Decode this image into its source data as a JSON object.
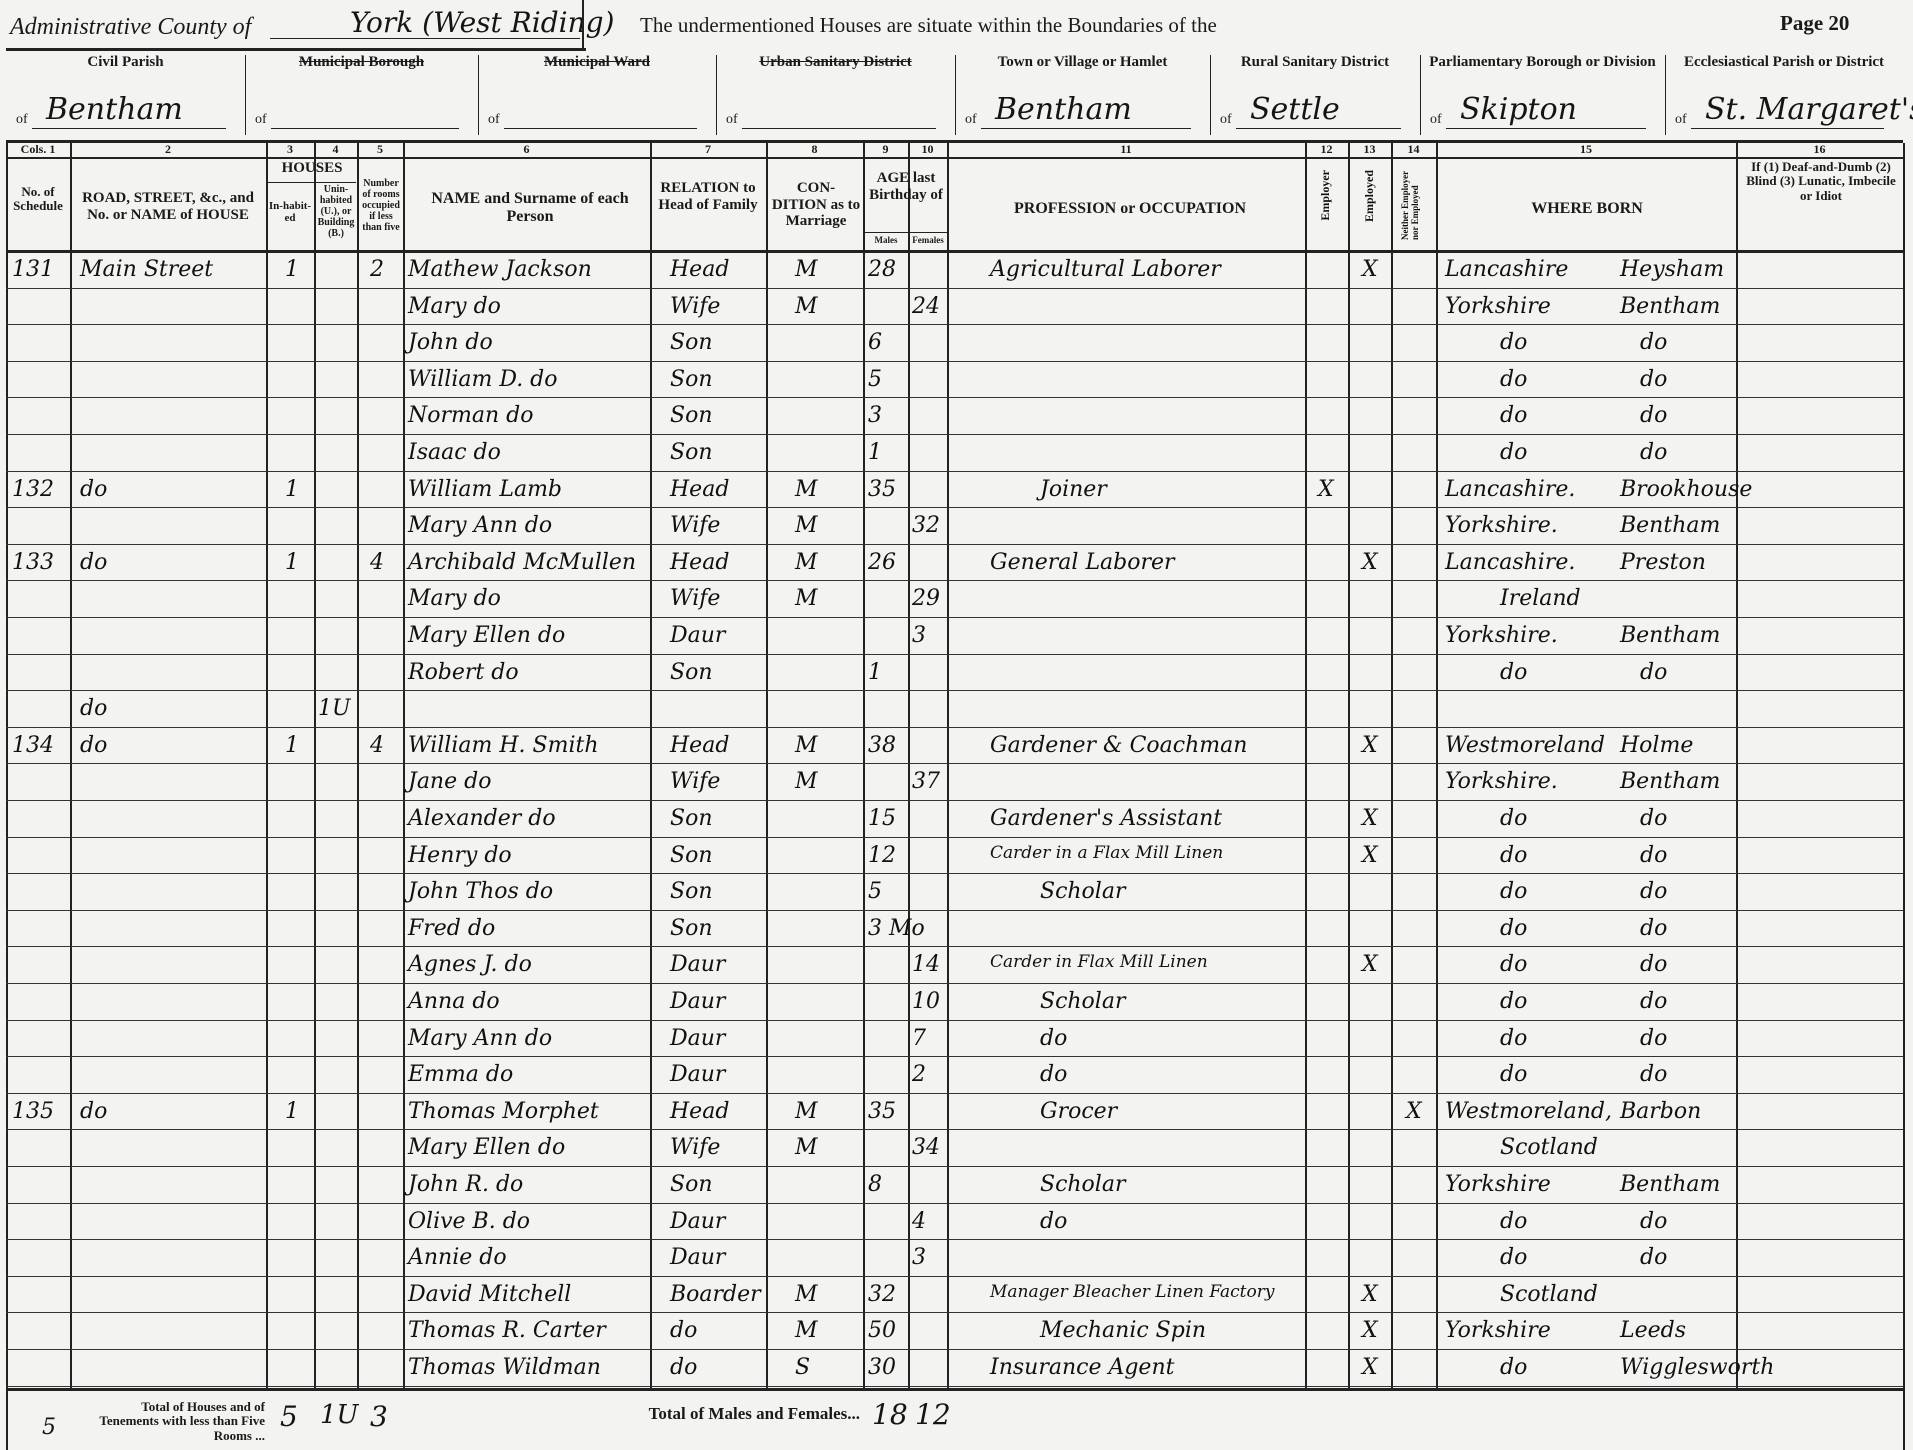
{
  "header": {
    "admin_county_label": "Administrative County of",
    "admin_county_value": "York (West Riding)",
    "boundaries_text": "The undermentioned Houses are situate within the Boundaries of the",
    "page": "Page 20",
    "districts": [
      {
        "label": "Civil Parish",
        "of": "of",
        "value": "Bentham",
        "struck": false
      },
      {
        "label": "Municipal Borough",
        "of": "of",
        "value": "",
        "struck": true
      },
      {
        "label": "Municipal Ward",
        "of": "of",
        "value": "",
        "struck": true
      },
      {
        "label": "Urban Sanitary District",
        "of": "of",
        "value": "",
        "struck": true
      },
      {
        "label": "Town or Village or Hamlet",
        "of": "of",
        "value": "Bentham",
        "struck": false
      },
      {
        "label": "Rural Sanitary District",
        "of": "of",
        "value": "Settle",
        "struck": false
      },
      {
        "label": "Parliamentary Borough or Division",
        "of": "of",
        "value": "Skipton",
        "struck": false
      },
      {
        "label": "Ecclesiastical Parish or District",
        "of": "of",
        "value": "St. Margaret's",
        "struck": false
      }
    ]
  },
  "columns": {
    "numbers": [
      "Cols. 1",
      "2",
      "3",
      "4",
      "5",
      "6",
      "7",
      "8",
      "9",
      "10",
      "11",
      "12",
      "13",
      "14",
      "15",
      "16"
    ],
    "schedule": "No. of Schedule",
    "road": "ROAD, STREET, &c., and No. or NAME of HOUSE",
    "houses": "HOUSES",
    "inhabited": "In-habit-ed",
    "uninhabited": "Unin-habited (U.), or Building (B.)",
    "rooms": "Number of rooms occupied if less than five",
    "name": "NAME and Surname of each Person",
    "relation": "RELATION to Head of Family",
    "condition": "CON-DITION as to Marriage",
    "age": "AGE last Birthday of",
    "males": "Males",
    "females": "Females",
    "occupation": "PROFESSION or OCCUPATION",
    "employer": "Employer",
    "employed": "Employed",
    "neither": "Neither Employer nor Employed",
    "born": "WHERE BORN",
    "infirmity": "If (1) Deaf-and-Dumb (2) Blind (3) Lunatic, Imbecile or Idiot"
  },
  "rows": [
    {
      "sched": "131",
      "road": "Main Street",
      "inh": "1",
      "unin": "",
      "rooms": "2",
      "name": "Mathew Jackson",
      "rel": "Head",
      "cond": "M",
      "m": "28",
      "f": "",
      "occ": "Agricultural Laborer",
      "c12": "",
      "c13": "X",
      "c14": "",
      "born1": "Lancashire",
      "born2": "Heysham"
    },
    {
      "sched": "",
      "road": "",
      "inh": "",
      "unin": "",
      "rooms": "",
      "name": "Mary   do",
      "rel": "Wife",
      "cond": "M",
      "m": "",
      "f": "24",
      "occ": "",
      "c12": "",
      "c13": "",
      "c14": "",
      "born1": "Yorkshire",
      "born2": "Bentham"
    },
    {
      "sched": "",
      "road": "",
      "inh": "",
      "unin": "",
      "rooms": "",
      "name": "John   do",
      "rel": "Son",
      "cond": "",
      "m": "6",
      "f": "",
      "occ": "",
      "c12": "",
      "c13": "",
      "c14": "",
      "born1": "do",
      "born2": "do"
    },
    {
      "sched": "",
      "road": "",
      "inh": "",
      "unin": "",
      "rooms": "",
      "name": "William D.  do",
      "rel": "Son",
      "cond": "",
      "m": "5",
      "f": "",
      "occ": "",
      "c12": "",
      "c13": "",
      "c14": "",
      "born1": "do",
      "born2": "do"
    },
    {
      "sched": "",
      "road": "",
      "inh": "",
      "unin": "",
      "rooms": "",
      "name": "Norman   do",
      "rel": "Son",
      "cond": "",
      "m": "3",
      "f": "",
      "occ": "",
      "c12": "",
      "c13": "",
      "c14": "",
      "born1": "do",
      "born2": "do"
    },
    {
      "sched": "",
      "road": "",
      "inh": "",
      "unin": "",
      "rooms": "",
      "name": "Isaac   do",
      "rel": "Son",
      "cond": "",
      "m": "1",
      "f": "",
      "occ": "",
      "c12": "",
      "c13": "",
      "c14": "",
      "born1": "do",
      "born2": "do"
    },
    {
      "sched": "132",
      "road": "do",
      "inh": "1",
      "unin": "",
      "rooms": "",
      "name": "William Lamb",
      "rel": "Head",
      "cond": "M",
      "m": "35",
      "f": "",
      "occ": "Joiner",
      "c12": "X",
      "c13": "",
      "c14": "",
      "born1": "Lancashire.",
      "born2": "Brookhouse"
    },
    {
      "sched": "",
      "road": "",
      "inh": "",
      "unin": "",
      "rooms": "",
      "name": "Mary Ann  do",
      "rel": "Wife",
      "cond": "M",
      "m": "",
      "f": "32",
      "occ": "",
      "c12": "",
      "c13": "",
      "c14": "",
      "born1": "Yorkshire.",
      "born2": "Bentham"
    },
    {
      "sched": "133",
      "road": "do",
      "inh": "1",
      "unin": "",
      "rooms": "4",
      "name": "Archibald McMullen",
      "rel": "Head",
      "cond": "M",
      "m": "26",
      "f": "",
      "occ": "General Laborer",
      "c12": "",
      "c13": "X",
      "c14": "",
      "born1": "Lancashire.",
      "born2": "Preston"
    },
    {
      "sched": "",
      "road": "",
      "inh": "",
      "unin": "",
      "rooms": "",
      "name": "Mary   do",
      "rel": "Wife",
      "cond": "M",
      "m": "",
      "f": "29",
      "occ": "",
      "c12": "",
      "c13": "",
      "c14": "",
      "born1": "Ireland",
      "born2": ""
    },
    {
      "sched": "",
      "road": "",
      "inh": "",
      "unin": "",
      "rooms": "",
      "name": "Mary Ellen  do",
      "rel": "Daur",
      "cond": "",
      "m": "",
      "f": "3",
      "occ": "",
      "c12": "",
      "c13": "",
      "c14": "",
      "born1": "Yorkshire.",
      "born2": "Bentham"
    },
    {
      "sched": "",
      "road": "",
      "inh": "",
      "unin": "",
      "rooms": "",
      "name": "Robert   do",
      "rel": "Son",
      "cond": "",
      "m": "1",
      "f": "",
      "occ": "",
      "c12": "",
      "c13": "",
      "c14": "",
      "born1": "do",
      "born2": "do"
    },
    {
      "sched": "",
      "road": "do",
      "inh": "",
      "unin": "1U",
      "rooms": "",
      "name": "",
      "rel": "",
      "cond": "",
      "m": "",
      "f": "",
      "occ": "",
      "c12": "",
      "c13": "",
      "c14": "",
      "born1": "",
      "born2": ""
    },
    {
      "sched": "134",
      "road": "do",
      "inh": "1",
      "unin": "",
      "rooms": "4",
      "name": "William H. Smith",
      "rel": "Head",
      "cond": "M",
      "m": "38",
      "f": "",
      "occ": "Gardener & Coachman",
      "c12": "",
      "c13": "X",
      "c14": "",
      "born1": "Westmoreland",
      "born2": "Holme"
    },
    {
      "sched": "",
      "road": "",
      "inh": "",
      "unin": "",
      "rooms": "",
      "name": "Jane   do",
      "rel": "Wife",
      "cond": "M",
      "m": "",
      "f": "37",
      "occ": "",
      "c12": "",
      "c13": "",
      "c14": "",
      "born1": "Yorkshire.",
      "born2": "Bentham"
    },
    {
      "sched": "",
      "road": "",
      "inh": "",
      "unin": "",
      "rooms": "",
      "name": "Alexander  do",
      "rel": "Son",
      "cond": "",
      "m": "15",
      "f": "",
      "occ": "Gardener's Assistant",
      "c12": "",
      "c13": "X",
      "c14": "",
      "born1": "do",
      "born2": "do"
    },
    {
      "sched": "",
      "road": "",
      "inh": "",
      "unin": "",
      "rooms": "",
      "name": "Henry   do",
      "rel": "Son",
      "cond": "",
      "m": "12",
      "f": "",
      "occ": "Carder in a Flax Mill Linen",
      "c12": "",
      "c13": "X",
      "c14": "",
      "born1": "do",
      "born2": "do"
    },
    {
      "sched": "",
      "road": "",
      "inh": "",
      "unin": "",
      "rooms": "",
      "name": "John Thos  do",
      "rel": "Son",
      "cond": "",
      "m": "5",
      "f": "",
      "occ": "Scholar",
      "c12": "",
      "c13": "",
      "c14": "",
      "born1": "do",
      "born2": "do"
    },
    {
      "sched": "",
      "road": "",
      "inh": "",
      "unin": "",
      "rooms": "",
      "name": "Fred   do",
      "rel": "Son",
      "cond": "",
      "m": "3 Mo",
      "f": "",
      "occ": "",
      "c12": "",
      "c13": "",
      "c14": "",
      "born1": "do",
      "born2": "do"
    },
    {
      "sched": "",
      "road": "",
      "inh": "",
      "unin": "",
      "rooms": "",
      "name": "Agnes J.  do",
      "rel": "Daur",
      "cond": "",
      "m": "",
      "f": "14",
      "occ": "Carder in Flax Mill Linen",
      "c12": "",
      "c13": "X",
      "c14": "",
      "born1": "do",
      "born2": "do"
    },
    {
      "sched": "",
      "road": "",
      "inh": "",
      "unin": "",
      "rooms": "",
      "name": "Anna   do",
      "rel": "Daur",
      "cond": "",
      "m": "",
      "f": "10",
      "occ": "Scholar",
      "c12": "",
      "c13": "",
      "c14": "",
      "born1": "do",
      "born2": "do"
    },
    {
      "sched": "",
      "road": "",
      "inh": "",
      "unin": "",
      "rooms": "",
      "name": "Mary Ann  do",
      "rel": "Daur",
      "cond": "",
      "m": "",
      "f": "7",
      "occ": "do",
      "c12": "",
      "c13": "",
      "c14": "",
      "born1": "do",
      "born2": "do"
    },
    {
      "sched": "",
      "road": "",
      "inh": "",
      "unin": "",
      "rooms": "",
      "name": "Emma   do",
      "rel": "Daur",
      "cond": "",
      "m": "",
      "f": "2",
      "occ": "do",
      "c12": "",
      "c13": "",
      "c14": "",
      "born1": "do",
      "born2": "do"
    },
    {
      "sched": "135",
      "road": "do",
      "inh": "1",
      "unin": "",
      "rooms": "",
      "name": "Thomas Morphet",
      "rel": "Head",
      "cond": "M",
      "m": "35",
      "f": "",
      "occ": "Grocer",
      "c12": "",
      "c13": "",
      "c14": "X",
      "born1": "Westmoreland,",
      "born2": "Barbon"
    },
    {
      "sched": "",
      "road": "",
      "inh": "",
      "unin": "",
      "rooms": "",
      "name": "Mary Ellen  do",
      "rel": "Wife",
      "cond": "M",
      "m": "",
      "f": "34",
      "occ": "",
      "c12": "",
      "c13": "",
      "c14": "",
      "born1": "Scotland",
      "born2": ""
    },
    {
      "sched": "",
      "road": "",
      "inh": "",
      "unin": "",
      "rooms": "",
      "name": "John R.  do",
      "rel": "Son",
      "cond": "",
      "m": "8",
      "f": "",
      "occ": "Scholar",
      "c12": "",
      "c13": "",
      "c14": "",
      "born1": "Yorkshire",
      "born2": "Bentham"
    },
    {
      "sched": "",
      "road": "",
      "inh": "",
      "unin": "",
      "rooms": "",
      "name": "Olive B.  do",
      "rel": "Daur",
      "cond": "",
      "m": "",
      "f": "4",
      "occ": "do",
      "c12": "",
      "c13": "",
      "c14": "",
      "born1": "do",
      "born2": "do"
    },
    {
      "sched": "",
      "road": "",
      "inh": "",
      "unin": "",
      "rooms": "",
      "name": "Annie   do",
      "rel": "Daur",
      "cond": "",
      "m": "",
      "f": "3",
      "occ": "",
      "c12": "",
      "c13": "",
      "c14": "",
      "born1": "do",
      "born2": "do"
    },
    {
      "sched": "",
      "road": "",
      "inh": "",
      "unin": "",
      "rooms": "",
      "name": "David Mitchell",
      "rel": "Boarder",
      "cond": "M",
      "m": "32",
      "f": "",
      "occ": "Manager Bleacher Linen Factory",
      "c12": "",
      "c13": "X",
      "c14": "",
      "born1": "Scotland",
      "born2": ""
    },
    {
      "sched": "",
      "road": "",
      "inh": "",
      "unin": "",
      "rooms": "",
      "name": "Thomas R. Carter",
      "rel": "do",
      "cond": "M",
      "m": "50",
      "f": "",
      "occ": "Mechanic Spin",
      "c12": "",
      "c13": "X",
      "c14": "",
      "born1": "Yorkshire",
      "born2": "Leeds"
    },
    {
      "sched": "",
      "road": "",
      "inh": "",
      "unin": "",
      "rooms": "",
      "name": "Thomas Wildman",
      "rel": "do",
      "cond": "S",
      "m": "30",
      "f": "",
      "occ": "Insurance Agent",
      "c12": "",
      "c13": "X",
      "c14": "",
      "born1": "do",
      "born2": "Wigglesworth"
    }
  ],
  "footer": {
    "schedules_total": "5",
    "houses_label": "Total of Houses and of Tenements with less than Five Rooms ...",
    "inhabited_total": "5",
    "uninhabited_total": "1U",
    "rooms_total": "3",
    "persons_label": "Total of Males and Females...",
    "males_total": "18",
    "females_total": "12"
  }
}
